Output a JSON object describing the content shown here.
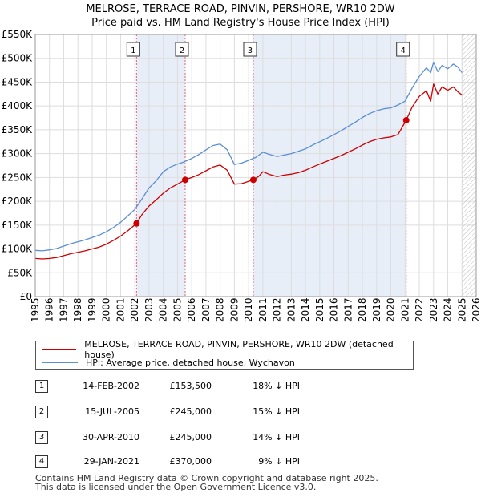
{
  "title": {
    "line1": "MELROSE, TERRACE ROAD, PINVIN, PERSHORE, WR10 2DW",
    "line2": "Price paid vs. HM Land Registry's House Price Index (HPI)"
  },
  "colors": {
    "property": "#cc0000",
    "hpi": "#5b8fd4",
    "shade": "#e8eef8",
    "vline": "#e06070",
    "grid": "#dddddd"
  },
  "legend": {
    "property_label": "MELROSE, TERRACE ROAD, PINVIN, PERSHORE, WR10 2DW (detached house)",
    "hpi_label": "HPI: Average price, detached house, Wychavon"
  },
  "sales": [
    {
      "num": "1",
      "date": "14-FEB-2002",
      "price": "£153,500",
      "hpi": "18% ↓ HPI"
    },
    {
      "num": "2",
      "date": "15-JUL-2005",
      "price": "£245,000",
      "hpi": "15% ↓ HPI"
    },
    {
      "num": "3",
      "date": "30-APR-2010",
      "price": "£245,000",
      "hpi": "14% ↓ HPI"
    },
    {
      "num": "4",
      "date": "29-JAN-2021",
      "price": "£370,000",
      "hpi": "9% ↓ HPI"
    }
  ],
  "footer": {
    "line1": "Contains HM Land Registry data © Crown copyright and database right 2025.",
    "line2": "This data is licensed under the Open Government Licence v3.0."
  },
  "chart_data": {
    "type": "line",
    "title": "Price paid vs. HM Land Registry's House Price Index (HPI)",
    "xlabel": "",
    "ylabel": "",
    "xlim": [
      1995,
      2026
    ],
    "ylim": [
      0,
      550000
    ],
    "grid": true,
    "y_ticks": [
      0,
      50000,
      100000,
      150000,
      200000,
      250000,
      300000,
      350000,
      400000,
      450000,
      500000,
      550000
    ],
    "y_tick_labels": [
      "£0",
      "£50K",
      "£100K",
      "£150K",
      "£200K",
      "£250K",
      "£300K",
      "£350K",
      "£400K",
      "£450K",
      "£500K",
      "£550K"
    ],
    "x_ticks": [
      1995,
      1996,
      1997,
      1998,
      1999,
      2000,
      2001,
      2002,
      2003,
      2004,
      2005,
      2006,
      2007,
      2008,
      2009,
      2010,
      2011,
      2012,
      2013,
      2014,
      2015,
      2016,
      2017,
      2018,
      2019,
      2020,
      2021,
      2022,
      2023,
      2024,
      2025,
      2026
    ],
    "future_hatch_from": 2025.0,
    "series": [
      {
        "name": "MELROSE, TERRACE ROAD, PINVIN, PERSHORE, WR10 2DW (detached house)",
        "color": "#cc0000",
        "x": [
          1995.0,
          1995.5,
          1996.0,
          1996.5,
          1997.0,
          1997.5,
          1998.0,
          1998.5,
          1999.0,
          1999.5,
          2000.0,
          2000.5,
          2001.0,
          2001.5,
          2002.12,
          2002.5,
          2003.0,
          2003.5,
          2004.0,
          2004.5,
          2005.0,
          2005.54,
          2006.0,
          2006.5,
          2007.0,
          2007.5,
          2008.0,
          2008.5,
          2009.0,
          2009.5,
          2010.33,
          2010.7,
          2011.0,
          2011.5,
          2012.0,
          2012.5,
          2013.0,
          2013.5,
          2014.0,
          2014.5,
          2015.0,
          2015.5,
          2016.0,
          2016.5,
          2017.0,
          2017.5,
          2018.0,
          2018.5,
          2019.0,
          2019.5,
          2020.0,
          2020.5,
          2021.08,
          2021.5,
          2022.0,
          2022.5,
          2022.8,
          2023.0,
          2023.3,
          2023.6,
          2024.0,
          2024.4,
          2024.7,
          2025.0
        ],
        "values": [
          80000,
          79000,
          80000,
          82000,
          86000,
          90000,
          93000,
          96000,
          100000,
          104000,
          110000,
          118000,
          127000,
          138000,
          153500,
          172000,
          190000,
          203000,
          217000,
          228000,
          236000,
          245000,
          250000,
          256000,
          264000,
          272000,
          276000,
          265000,
          236000,
          237000,
          245000,
          252000,
          262000,
          256000,
          252000,
          255000,
          257000,
          260000,
          265000,
          272000,
          278000,
          284000,
          290000,
          296000,
          303000,
          310000,
          318000,
          325000,
          330000,
          333000,
          335000,
          340000,
          370000,
          398000,
          420000,
          432000,
          410000,
          446000,
          425000,
          440000,
          433000,
          440000,
          430000,
          423000
        ]
      },
      {
        "name": "HPI: Average price, detached house, Wychavon",
        "color": "#5b8fd4",
        "x": [
          1995.0,
          1995.5,
          1996.0,
          1996.5,
          1997.0,
          1997.5,
          1998.0,
          1998.5,
          1999.0,
          1999.5,
          2000.0,
          2000.5,
          2001.0,
          2001.5,
          2002.0,
          2002.5,
          2003.0,
          2003.5,
          2004.0,
          2004.5,
          2005.0,
          2005.5,
          2006.0,
          2006.5,
          2007.0,
          2007.5,
          2008.0,
          2008.5,
          2009.0,
          2009.5,
          2010.0,
          2010.5,
          2011.0,
          2011.5,
          2012.0,
          2012.5,
          2013.0,
          2013.5,
          2014.0,
          2014.5,
          2015.0,
          2015.5,
          2016.0,
          2016.5,
          2017.0,
          2017.5,
          2018.0,
          2018.5,
          2019.0,
          2019.5,
          2020.0,
          2020.5,
          2021.0,
          2021.5,
          2022.0,
          2022.5,
          2022.8,
          2023.0,
          2023.3,
          2023.6,
          2024.0,
          2024.4,
          2024.7,
          2025.0
        ],
        "values": [
          97000,
          96000,
          98000,
          101000,
          106000,
          111000,
          115000,
          119000,
          124000,
          129000,
          136000,
          145000,
          156000,
          169000,
          183000,
          205000,
          228000,
          243000,
          262000,
          272000,
          278000,
          283000,
          290000,
          298000,
          308000,
          317000,
          320000,
          308000,
          277000,
          280000,
          286000,
          292000,
          303000,
          298000,
          294000,
          297000,
          300000,
          305000,
          310000,
          318000,
          325000,
          332000,
          340000,
          348000,
          357000,
          366000,
          376000,
          384000,
          390000,
          394000,
          396000,
          402000,
          410000,
          438000,
          462000,
          480000,
          470000,
          492000,
          472000,
          485000,
          478000,
          488000,
          482000,
          470000
        ]
      }
    ],
    "sale_markers": [
      {
        "label": "1",
        "x": 2002.12,
        "value": 153500
      },
      {
        "label": "2",
        "x": 2005.54,
        "value": 245000
      },
      {
        "label": "3",
        "x": 2010.33,
        "value": 245000
      },
      {
        "label": "4",
        "x": 2021.08,
        "value": 370000
      }
    ],
    "shaded_periods": [
      [
        2002.12,
        2005.54
      ],
      [
        2010.33,
        2021.08
      ]
    ]
  }
}
